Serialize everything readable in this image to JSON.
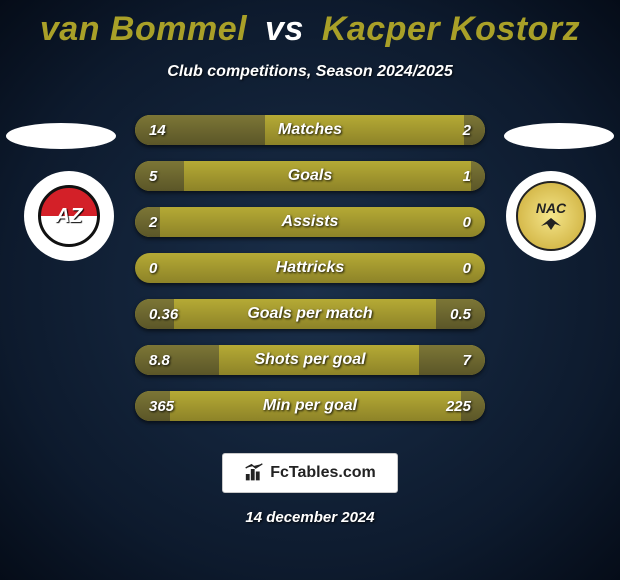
{
  "title": {
    "left": "van Bommel",
    "vs": "vs",
    "right": "Kacper Kostorz",
    "left_color": "#a9a028",
    "vs_color": "#ffffff",
    "right_color": "#a9a028",
    "fontsize": 34
  },
  "subtitle": "Club competitions, Season 2024/2025",
  "teams": {
    "left": {
      "abbrev": "AZ",
      "badge_bg": "#ffffff",
      "accent": "#d32028"
    },
    "right": {
      "abbrev": "NAC",
      "badge_bg": "#ffffff",
      "accent": "#c9a832"
    }
  },
  "stats": {
    "bar_bg_light": "#b5aa35",
    "bar_bg_dark": "#8d8328",
    "fill_light": "#7c7636",
    "fill_dark": "#5b5628",
    "text_color": "#ffffff",
    "label_fontsize": 16,
    "value_fontsize": 15,
    "rows": [
      {
        "label": "Matches",
        "left": "14",
        "right": "2",
        "left_pct": 37,
        "right_pct": 6
      },
      {
        "label": "Goals",
        "left": "5",
        "right": "1",
        "left_pct": 14,
        "right_pct": 4
      },
      {
        "label": "Assists",
        "left": "2",
        "right": "0",
        "left_pct": 7,
        "right_pct": 0
      },
      {
        "label": "Hattricks",
        "left": "0",
        "right": "0",
        "left_pct": 0,
        "right_pct": 0
      },
      {
        "label": "Goals per match",
        "left": "0.36",
        "right": "0.5",
        "left_pct": 11,
        "right_pct": 14
      },
      {
        "label": "Shots per goal",
        "left": "8.8",
        "right": "7",
        "left_pct": 24,
        "right_pct": 19
      },
      {
        "label": "Min per goal",
        "left": "365",
        "right": "225",
        "left_pct": 10,
        "right_pct": 7
      }
    ]
  },
  "footer": {
    "brand": "FcTables.com",
    "date": "14 december 2024"
  },
  "colors": {
    "bg_inner": "#1a2f4a",
    "bg_outer": "#050c18"
  }
}
